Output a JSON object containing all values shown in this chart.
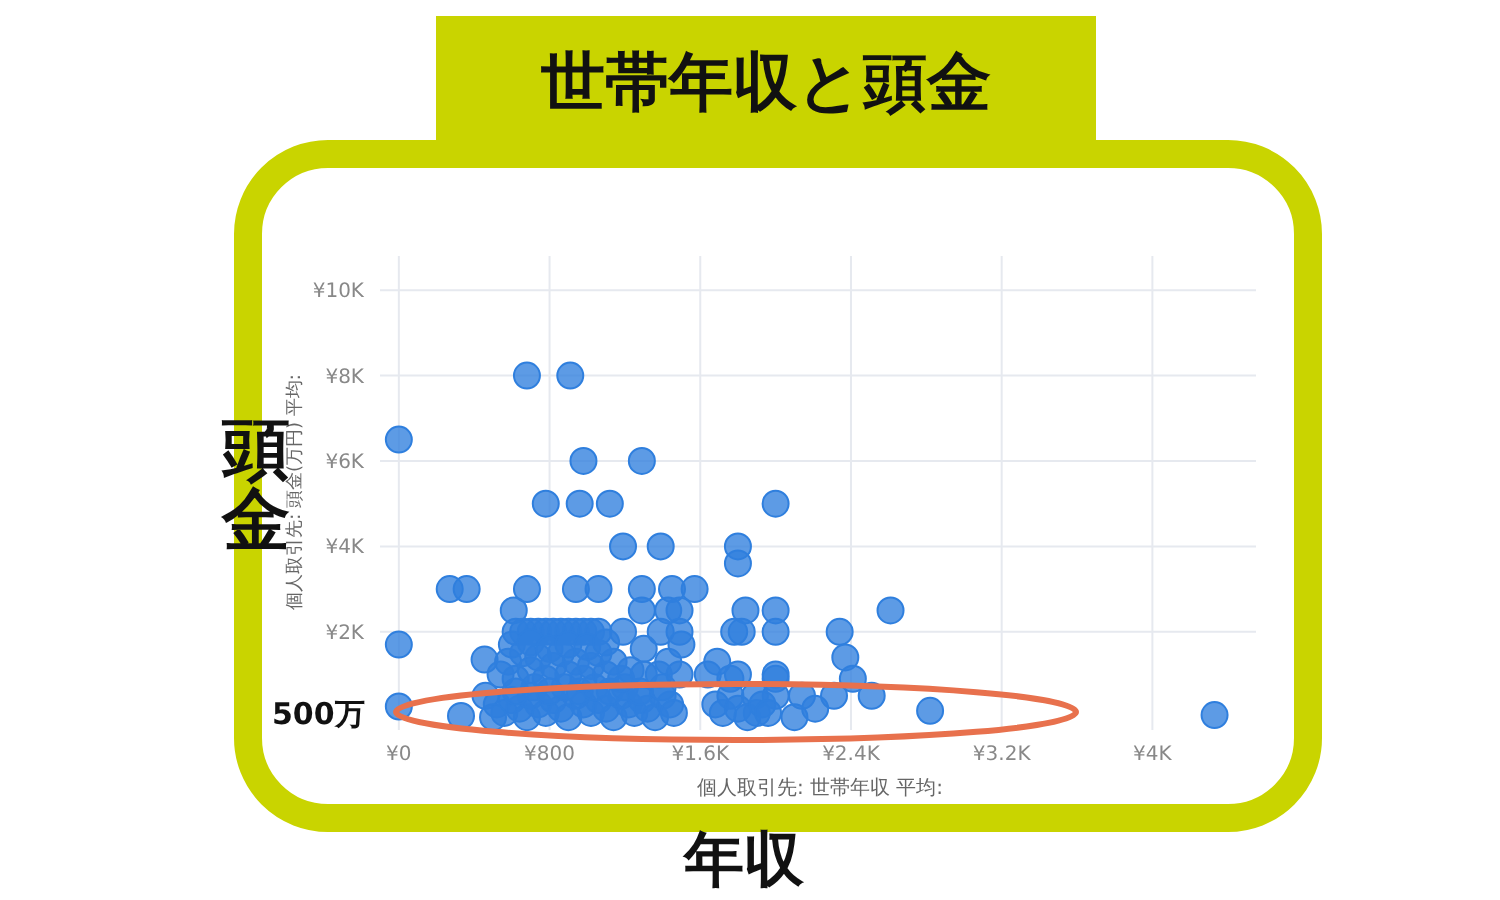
{
  "chart_data": {
    "type": "scatter",
    "title": "世帯年収と頭金",
    "xlabel": "個人取引先: 世帯年収 平均:",
    "ylabel": "個人取引先: 頭金(万円) 平均:",
    "annotations": [
      "頭金",
      "年収",
      "500万"
    ],
    "xlim": [
      -100,
      4550
    ],
    "ylim": [
      -300,
      10800
    ],
    "xticks": [
      {
        "value": 0,
        "label": "¥0"
      },
      {
        "value": 800,
        "label": "¥800"
      },
      {
        "value": 1600,
        "label": "¥1.6K"
      },
      {
        "value": 2400,
        "label": "¥2.4K"
      },
      {
        "value": 3200,
        "label": "¥3.2K"
      },
      {
        "value": 4000,
        "label": "¥4K"
      }
    ],
    "yticks": [
      {
        "value": 2000,
        "label": "¥2K"
      },
      {
        "value": 4000,
        "label": "¥4K"
      },
      {
        "value": 6000,
        "label": "¥6K"
      },
      {
        "value": 8000,
        "label": "¥8K"
      },
      {
        "value": 10000,
        "label": "¥10K"
      }
    ],
    "grid": true,
    "marker": "circle",
    "series": [
      {
        "color": "#2f7fde",
        "x": [
          0,
          0,
          0,
          680,
          910,
          980,
          1290,
          780,
          960,
          1120,
          1190,
          1390,
          270,
          360,
          680,
          940,
          1060,
          1290,
          1450,
          1570,
          610,
          1290,
          1430,
          1490,
          1800,
          1800,
          2000,
          1840,
          2000,
          1820,
          2000,
          2610,
          2340,
          2370,
          2410,
          2000,
          2510,
          2310,
          2140,
          2000,
          1890,
          2210,
          2100,
          1900,
          2820,
          4330,
          330,
          460,
          520,
          560,
          600,
          640,
          680,
          700,
          740,
          780,
          820,
          860,
          900,
          940,
          980,
          1020,
          1060,
          1100,
          1140,
          1180,
          1220,
          1250,
          1290,
          1320,
          1360,
          1400,
          1440,
          1460,
          500,
          620,
          720,
          800,
          880,
          960,
          1040,
          1120,
          1200,
          1280,
          1400,
          1680,
          1720,
          1760,
          1800,
          1850,
          1930,
          1960,
          455,
          540,
          580,
          620,
          660,
          700,
          740,
          780,
          820,
          860,
          900,
          940,
          980,
          1020,
          1060,
          1100,
          1140,
          1180,
          1230,
          1300,
          1380,
          1430,
          1490,
          1640,
          1690,
          1760,
          1800,
          2000,
          620,
          660,
          700,
          740,
          780,
          820,
          860,
          900,
          940,
          980,
          1020,
          1060,
          1190,
          1390,
          1490,
          1780,
          600,
          700,
          800,
          900,
          1000,
          1100,
          1300,
          1500
        ],
        "values": [
          6500,
          1700,
          250,
          8000,
          8000,
          6000,
          6000,
          5000,
          5000,
          5000,
          4000,
          4000,
          3000,
          3000,
          3000,
          3000,
          3000,
          3000,
          3000,
          3000,
          2500,
          2500,
          2500,
          2500,
          4000,
          3600,
          5000,
          2500,
          2500,
          2000,
          2000,
          2500,
          2000,
          1400,
          900,
          900,
          500,
          500,
          500,
          500,
          500,
          200,
          0,
          100,
          150,
          50,
          30,
          500,
          300,
          100,
          400,
          200,
          0,
          500,
          300,
          100,
          400,
          200,
          0,
          500,
          300,
          100,
          400,
          200,
          0,
          500,
          300,
          100,
          400,
          200,
          0,
          500,
          300,
          100,
          0,
          600,
          700,
          600,
          700,
          600,
          700,
          600,
          700,
          600,
          700,
          300,
          100,
          500,
          200,
          0,
          300,
          100,
          1350,
          1000,
          1300,
          900,
          1500,
          1100,
          1400,
          900,
          1200,
          1500,
          1000,
          1300,
          900,
          1200,
          1500,
          1000,
          1300,
          900,
          1100,
          1000,
          1000,
          1300,
          1000,
          1000,
          1300,
          900,
          1000,
          1000,
          2000,
          2000,
          2000,
          2000,
          2000,
          2000,
          2000,
          2000,
          2000,
          2000,
          2000,
          2000,
          2000,
          2000,
          2000,
          2000,
          1700,
          1750,
          1600,
          1700,
          1650,
          1750,
          1600,
          1700
        ]
      }
    ]
  }
}
